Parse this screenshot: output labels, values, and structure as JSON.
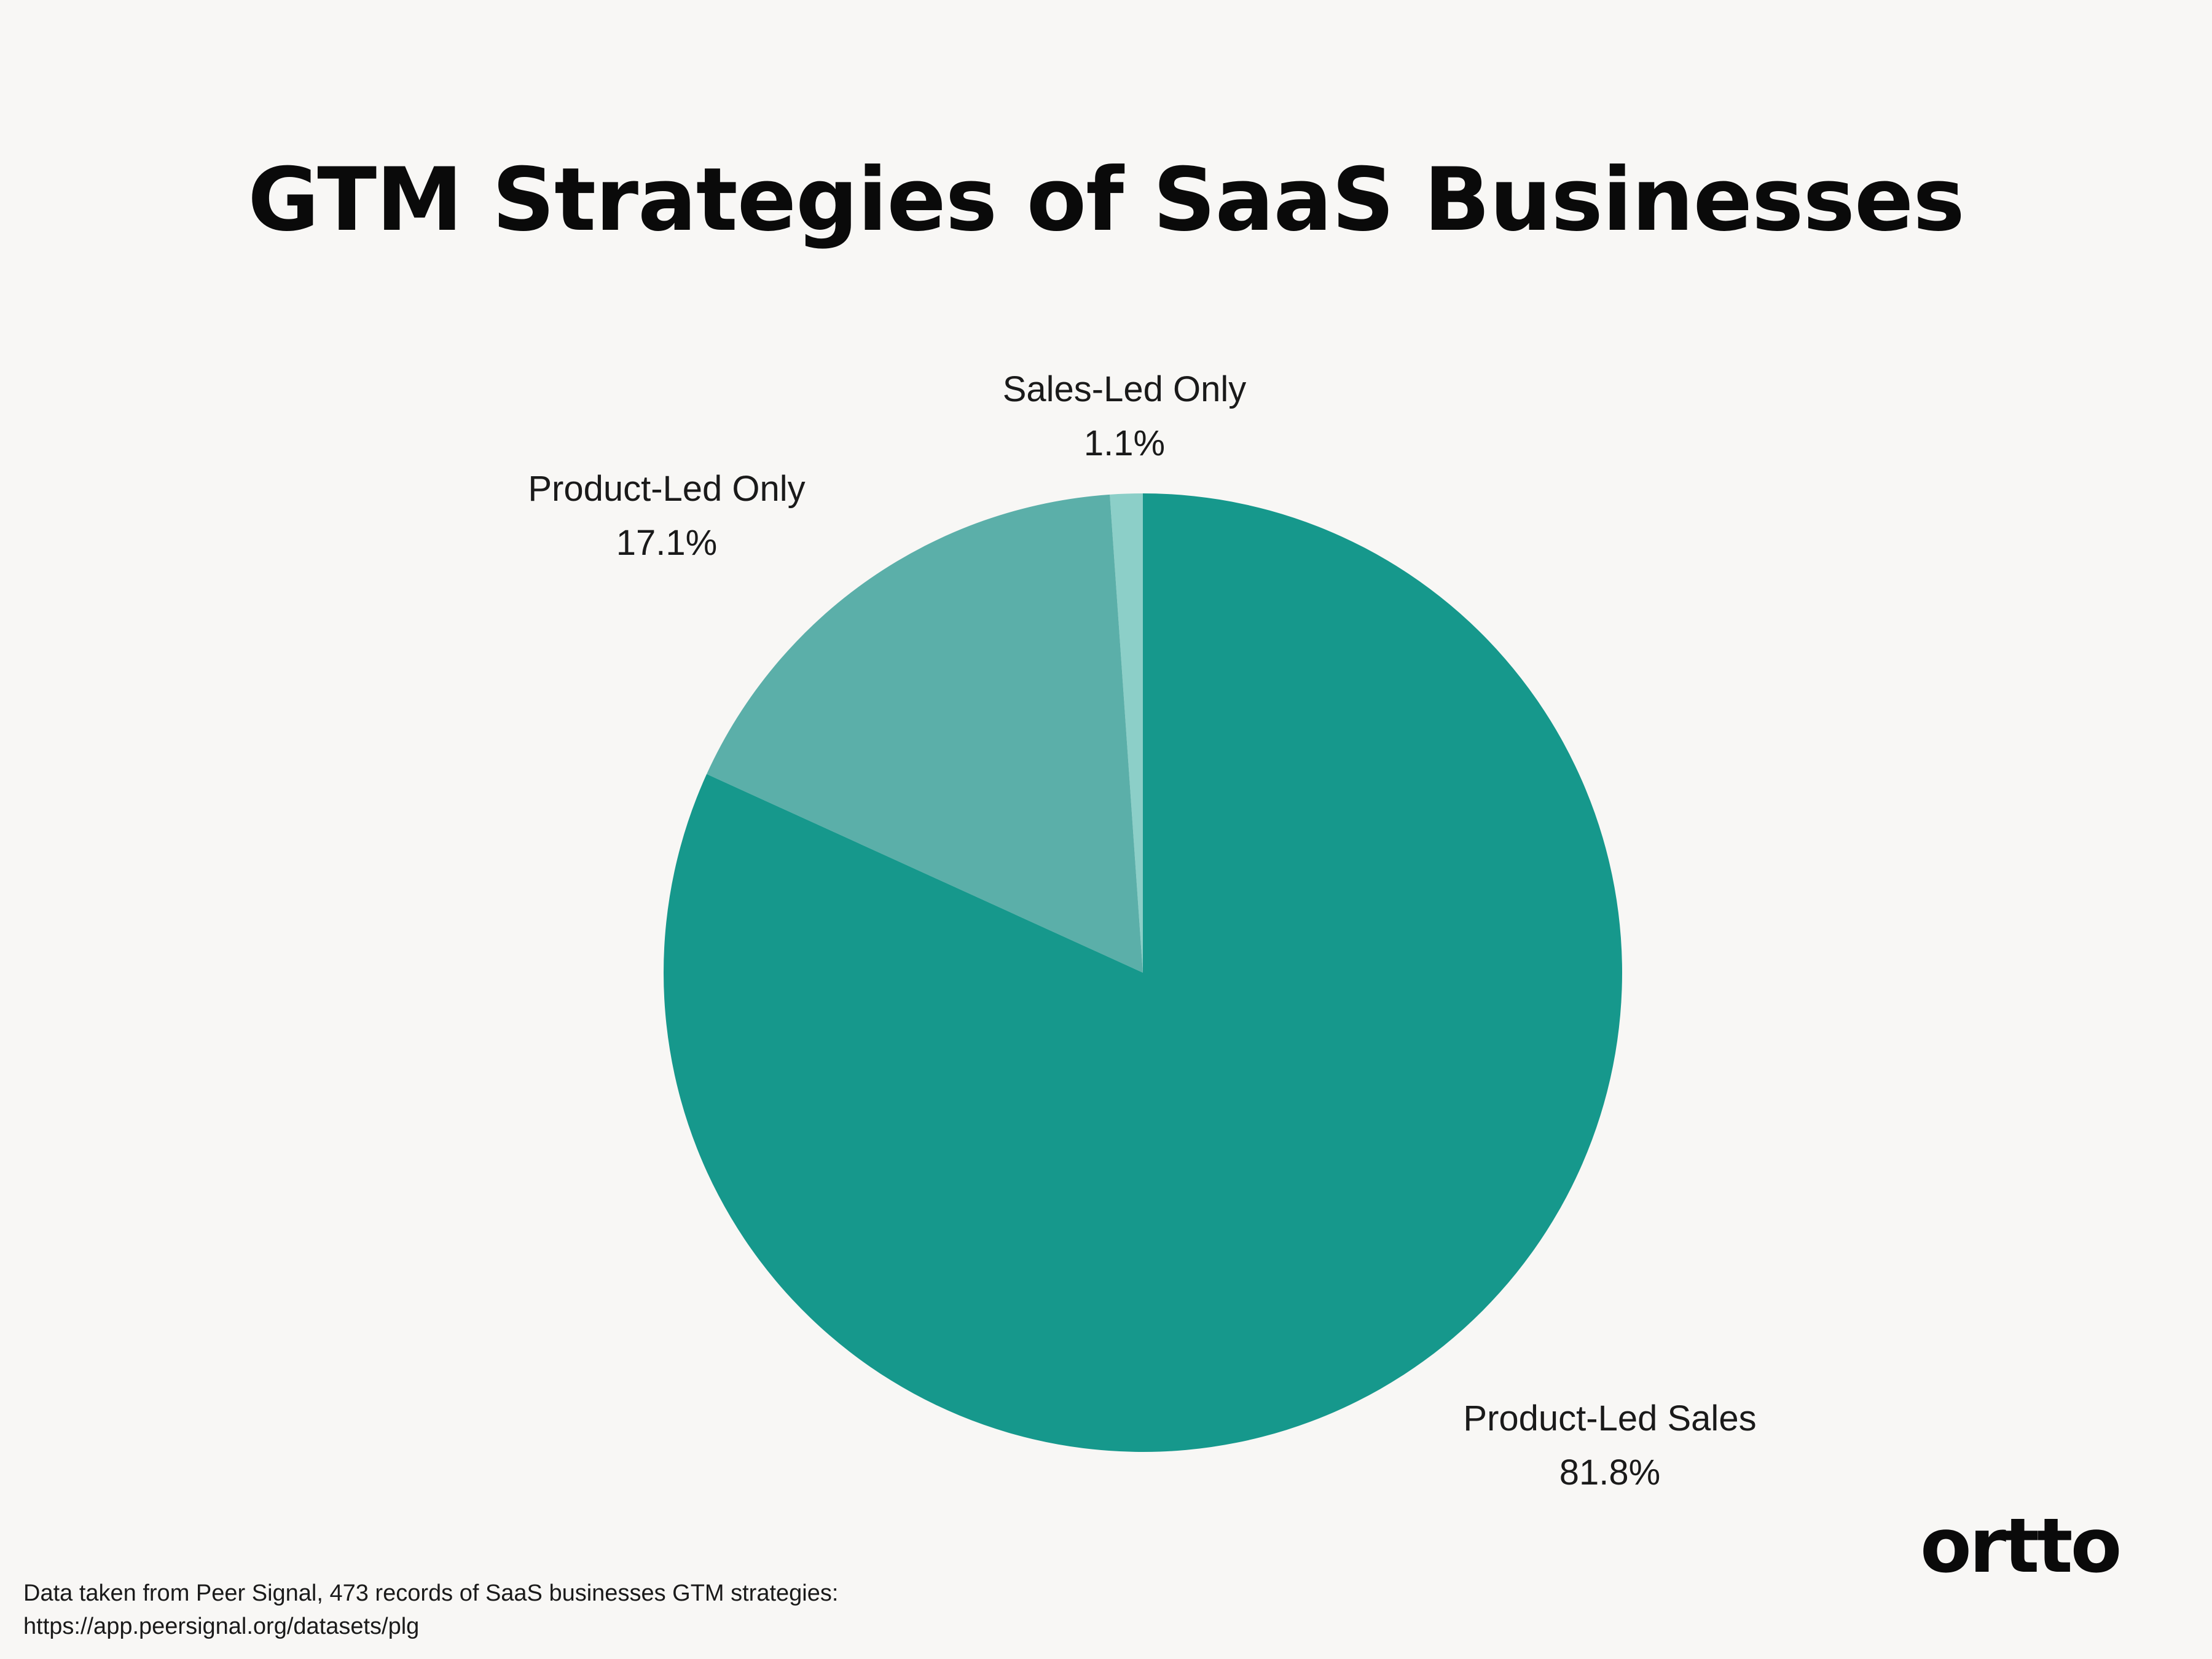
{
  "chart_data": {
    "type": "pie",
    "title": "GTM Strategies of SaaS Businesses",
    "slices": [
      {
        "label": "Sales-Led Only",
        "value": 1.1,
        "value_label": "1.1%",
        "color": "#8ccfc8"
      },
      {
        "label": "Product-Led Only",
        "value": 17.1,
        "value_label": "17.1%",
        "color": "#5bafa9"
      },
      {
        "label": "Product-Led Sales",
        "value": 81.8,
        "value_label": "81.8%",
        "color": "#16988c"
      }
    ],
    "start_angle": "12 o'clock",
    "direction": "counter-clockwise from Sales-Led Only"
  },
  "footer": {
    "source_line1": "Data taken from Peer Signal, 473 records of SaaS businesses GTM strategies:",
    "source_line2": "https://app.peersignal.org/datasets/plg"
  },
  "brand": {
    "logo_text": "ortto"
  },
  "colors": {
    "background": "#f8f7f5",
    "text": "#111111"
  }
}
